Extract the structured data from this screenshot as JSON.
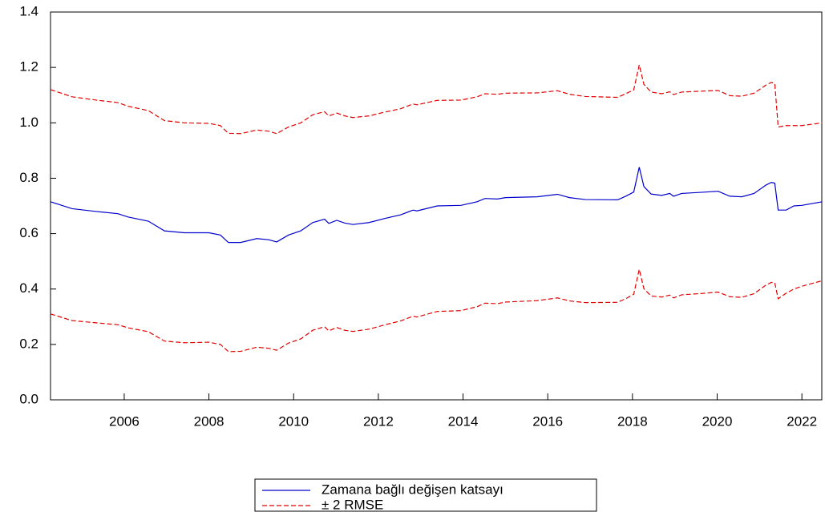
{
  "chart_data": {
    "type": "line",
    "x": [
      2004.26,
      2004.77,
      2005.34,
      2005.85,
      2006.09,
      2006.57,
      2006.95,
      2007.42,
      2008.0,
      2008.27,
      2008.46,
      2008.75,
      2009.13,
      2009.41,
      2009.6,
      2009.88,
      2010.17,
      2010.45,
      2010.73,
      2010.83,
      2011.02,
      2011.21,
      2011.4,
      2011.78,
      2012.16,
      2012.53,
      2012.82,
      2012.91,
      2013.39,
      2013.95,
      2014.33,
      2014.52,
      2014.81,
      2015.0,
      2015.75,
      2016.23,
      2016.51,
      2016.89,
      2017.65,
      2017.84,
      2018.03,
      2018.16,
      2018.27,
      2018.44,
      2018.69,
      2018.88,
      2018.97,
      2019.16,
      2019.73,
      2020.02,
      2020.3,
      2020.58,
      2020.87,
      2021.15,
      2021.28,
      2021.36,
      2021.44,
      2021.63,
      2021.81,
      2022.0,
      2022.48
    ],
    "series": [
      {
        "name": "Zamana bağlı değişen katsayı",
        "color": "#0000cc",
        "dashed": false,
        "values": [
          0.715,
          0.69,
          0.68,
          0.672,
          0.66,
          0.645,
          0.61,
          0.603,
          0.603,
          0.595,
          0.568,
          0.568,
          0.582,
          0.578,
          0.57,
          0.595,
          0.61,
          0.64,
          0.652,
          0.637,
          0.648,
          0.638,
          0.633,
          0.64,
          0.655,
          0.668,
          0.685,
          0.682,
          0.7,
          0.702,
          0.715,
          0.727,
          0.725,
          0.73,
          0.733,
          0.742,
          0.73,
          0.723,
          0.722,
          0.735,
          0.75,
          0.84,
          0.77,
          0.743,
          0.738,
          0.745,
          0.735,
          0.745,
          0.75,
          0.753,
          0.735,
          0.733,
          0.745,
          0.775,
          0.785,
          0.782,
          0.685,
          0.685,
          0.7,
          0.702,
          0.715
        ]
      },
      {
        "name": "± 2 RMSE",
        "color": "#e00000",
        "dashed": true,
        "upper": [
          1.12,
          1.094,
          1.082,
          1.073,
          1.06,
          1.044,
          1.008,
          1.0,
          0.998,
          0.99,
          0.962,
          0.961,
          0.974,
          0.97,
          0.961,
          0.985,
          1.0,
          1.029,
          1.04,
          1.025,
          1.035,
          1.025,
          1.019,
          1.025,
          1.039,
          1.051,
          1.068,
          1.065,
          1.081,
          1.082,
          1.094,
          1.105,
          1.103,
          1.107,
          1.108,
          1.116,
          1.103,
          1.095,
          1.092,
          1.105,
          1.119,
          1.209,
          1.139,
          1.111,
          1.105,
          1.112,
          1.102,
          1.111,
          1.115,
          1.117,
          1.098,
          1.096,
          1.107,
          1.136,
          1.146,
          1.142,
          0.985,
          0.99,
          0.99,
          0.99,
          1.0
        ],
        "lower": [
          0.31,
          0.286,
          0.278,
          0.271,
          0.26,
          0.246,
          0.212,
          0.206,
          0.208,
          0.2,
          0.174,
          0.175,
          0.19,
          0.186,
          0.179,
          0.205,
          0.22,
          0.251,
          0.264,
          0.249,
          0.261,
          0.251,
          0.247,
          0.255,
          0.271,
          0.285,
          0.302,
          0.299,
          0.319,
          0.322,
          0.336,
          0.349,
          0.347,
          0.353,
          0.358,
          0.368,
          0.357,
          0.351,
          0.352,
          0.365,
          0.381,
          0.471,
          0.401,
          0.375,
          0.371,
          0.378,
          0.368,
          0.379,
          0.385,
          0.389,
          0.372,
          0.37,
          0.383,
          0.414,
          0.424,
          0.422,
          0.365,
          0.385,
          0.4,
          0.41,
          0.43
        ]
      }
    ],
    "xlim": [
      2004.26,
      2022.47
    ],
    "xticks": [
      2006,
      2008,
      2010,
      2012,
      2014,
      2016,
      2018,
      2020,
      2022
    ],
    "ylim": [
      0,
      1.4
    ],
    "yticks": [
      {
        "value": 0,
        "label": "0.0"
      },
      0.2,
      0.4,
      0.6,
      0.8,
      {
        "value": 1,
        "label": "1.0"
      },
      1.2,
      1.4
    ],
    "grid": false
  }
}
